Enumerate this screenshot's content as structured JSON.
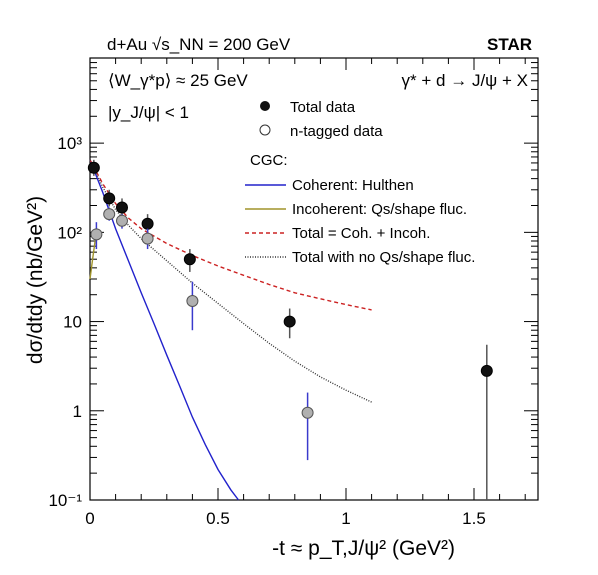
{
  "chart_data": {
    "type": "scatter",
    "x_axis": {
      "label": "-t ≈ p_T,J/ψ² (GeV²)",
      "range": [
        0,
        1.75
      ],
      "scale": "linear",
      "ticks": [
        0,
        0.5,
        1,
        1.5
      ],
      "tick_labels": [
        "0",
        "0.5",
        "1",
        "1.5"
      ]
    },
    "y_axis": {
      "label": "dσ/dtdy (nb/GeV²)",
      "range": [
        0.1,
        9000
      ],
      "scale": "log",
      "ticks": [
        0.1,
        1,
        10,
        100,
        1000
      ],
      "tick_labels": [
        "10⁻¹",
        "1",
        "10",
        "10²",
        "10³"
      ]
    },
    "grid": false,
    "legend_position": "top-right",
    "annotations": {
      "top_left": "d+Au √s_NN = 200 GeV",
      "top_right": "STAR",
      "w_label": "⟨W_γ*p⟩ ≈ 25 GeV",
      "y_label": "|y_J/ψ| < 1",
      "process": "γ* + d → J/ψ + X",
      "cgc_header": "CGC:"
    },
    "series": [
      {
        "name": "Total data",
        "kind": "points",
        "marker": "filled-circle",
        "color": "#111111",
        "error_color": "#555555",
        "points": [
          {
            "x": 0.015,
            "y": 530,
            "ylo": 430,
            "yhi": 650
          },
          {
            "x": 0.075,
            "y": 240,
            "ylo": 195,
            "yhi": 300
          },
          {
            "x": 0.125,
            "y": 190,
            "ylo": 150,
            "yhi": 240
          },
          {
            "x": 0.225,
            "y": 125,
            "ylo": 95,
            "yhi": 160
          },
          {
            "x": 0.39,
            "y": 50,
            "ylo": 36,
            "yhi": 65
          },
          {
            "x": 0.78,
            "y": 10,
            "ylo": 6.5,
            "yhi": 14
          },
          {
            "x": 1.55,
            "y": 2.8,
            "ylo": 0.1,
            "yhi": 5.5
          }
        ]
      },
      {
        "name": "n-tagged data",
        "kind": "points",
        "marker": "open-circle",
        "color": "#b0b0b0",
        "error_color": "#3a3acc",
        "points": [
          {
            "x": 0.025,
            "y": 95,
            "ylo": 65,
            "yhi": 130
          },
          {
            "x": 0.075,
            "y": 160,
            "ylo": 135,
            "yhi": 190
          },
          {
            "x": 0.125,
            "y": 135,
            "ylo": 110,
            "yhi": 160
          },
          {
            "x": 0.225,
            "y": 85,
            "ylo": 65,
            "yhi": 110
          },
          {
            "x": 0.4,
            "y": 17,
            "ylo": 8,
            "yhi": 28
          },
          {
            "x": 0.85,
            "y": 0.95,
            "ylo": 0.28,
            "yhi": 1.6
          }
        ]
      },
      {
        "name": "Coherent: Hulthen",
        "kind": "line",
        "style": "solid",
        "color": "#2222cc",
        "x": [
          0,
          0.05,
          0.1,
          0.15,
          0.2,
          0.25,
          0.3,
          0.35,
          0.4,
          0.45,
          0.5,
          0.55,
          0.58
        ],
        "y": [
          650,
          280,
          110,
          48,
          21,
          9.5,
          4.2,
          1.9,
          0.85,
          0.42,
          0.22,
          0.13,
          0.1
        ]
      },
      {
        "name": "Incoherent: Qs/shape fluc.",
        "kind": "line",
        "style": "solid",
        "color": "#a0942a",
        "x": [
          0,
          0.01,
          0.02,
          0.03
        ],
        "y": [
          30,
          50,
          80,
          100
        ]
      },
      {
        "name": "Total = Coh. + Incoh.",
        "kind": "line",
        "style": "dashed",
        "color": "#cc2222",
        "x": [
          0,
          0.05,
          0.1,
          0.15,
          0.2,
          0.3,
          0.4,
          0.5,
          0.6,
          0.7,
          0.8,
          0.9,
          1.0,
          1.1
        ],
        "y": [
          650,
          350,
          210,
          145,
          110,
          75,
          55,
          42,
          33,
          26,
          21,
          18,
          15.5,
          13.5
        ]
      },
      {
        "name": "Total with no Qs/shape fluc.",
        "kind": "line",
        "style": "dotted",
        "color": "#333333",
        "x": [
          0,
          0.05,
          0.1,
          0.15,
          0.2,
          0.3,
          0.4,
          0.5,
          0.6,
          0.7,
          0.8,
          0.9,
          1.0,
          1.1
        ],
        "y": [
          650,
          320,
          180,
          120,
          85,
          48,
          27,
          16,
          9.5,
          5.7,
          3.6,
          2.4,
          1.7,
          1.25
        ]
      }
    ]
  }
}
